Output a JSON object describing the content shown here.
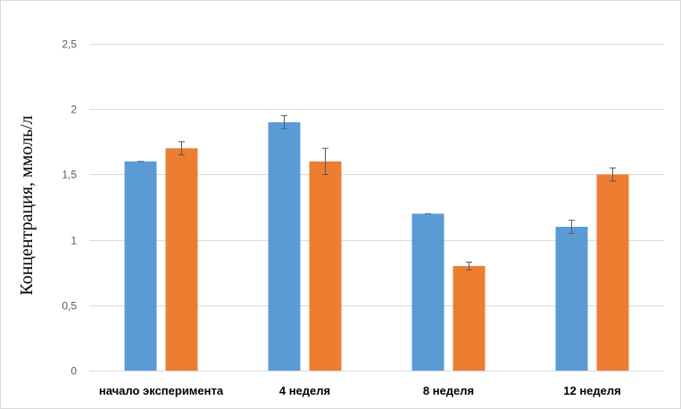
{
  "chart_data": {
    "type": "bar",
    "title": "",
    "xlabel": "",
    "ylabel": "Концентрация, ммоль/л",
    "ylim": [
      0,
      2.5
    ],
    "yticks": [
      "0",
      "0,5",
      "1",
      "1,5",
      "2",
      "2,5"
    ],
    "ytick_values": [
      0,
      0.5,
      1,
      1.5,
      2,
      2.5
    ],
    "grid": true,
    "legend": "none",
    "categories": [
      "начало эксперимента",
      "4 неделя",
      "8 неделя",
      "12 неделя"
    ],
    "series": [
      {
        "color": "#5B9BD5",
        "values": [
          1.6,
          1.9,
          1.2,
          1.1
        ],
        "errors": [
          0,
          0.05,
          0,
          0.05
        ]
      },
      {
        "color": "#ED7D31",
        "values": [
          1.7,
          1.6,
          0.8,
          1.5
        ],
        "errors": [
          0.05,
          0.1,
          0.03,
          0.05
        ]
      }
    ]
  }
}
